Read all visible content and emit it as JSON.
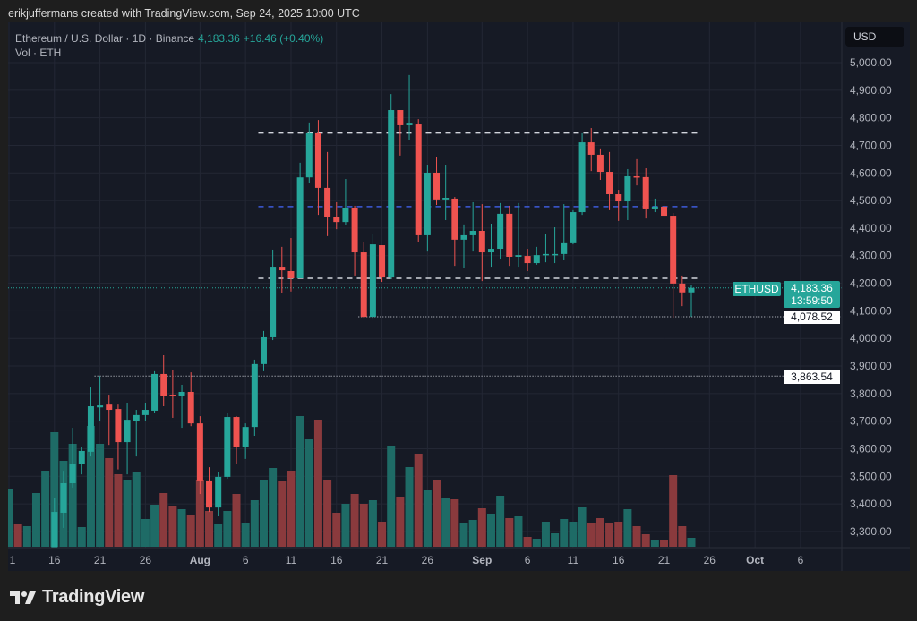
{
  "credit": "erikjuffermans created with TradingView.com, Sep 24, 2025 10:00 UTC",
  "legend": {
    "symbol": "Ethereum / U.S. Dollar · 1D · Binance",
    "price": "4,183.36",
    "change": "+16.46 (+0.40%)",
    "volume_label": "Vol · ETH"
  },
  "currency_button": "USD",
  "tags": {
    "symbol": "ETHUSD",
    "last_price": "4,183.36",
    "countdown": "13:59:50",
    "level_low": "4,078.52",
    "level_support": "3,863.54"
  },
  "brand": "TradingView",
  "colors": {
    "up": "#26a69a",
    "down": "#ef5350",
    "up_volume": "#1e6b66",
    "down_volume": "#8a3a3d",
    "mid_line": "#3d5bd9",
    "background": "#161a25"
  },
  "chart_data": {
    "type": "candlestick",
    "title": "Ethereum / U.S. Dollar · 1D · Binance",
    "ylim": [
      3250,
      5050
    ],
    "y_ticks": [
      "5,000.00",
      "4,900.00",
      "4,800.00",
      "4,700.00",
      "4,600.00",
      "4,500.00",
      "4,400.00",
      "4,300.00",
      "4,200.00",
      "4,100.00",
      "4,000.00",
      "3,900.00",
      "3,800.00",
      "3,700.00",
      "3,600.00",
      "3,500.00",
      "3,400.00",
      "3,300.00"
    ],
    "x_ticks": [
      {
        "date": "2025-07-11",
        "label": "1"
      },
      {
        "date": "2025-07-16",
        "label": "16"
      },
      {
        "date": "2025-07-21",
        "label": "21"
      },
      {
        "date": "2025-07-26",
        "label": "26"
      },
      {
        "date": "2025-08-01",
        "label": "Aug",
        "bold": true
      },
      {
        "date": "2025-08-06",
        "label": "6"
      },
      {
        "date": "2025-08-11",
        "label": "11"
      },
      {
        "date": "2025-08-16",
        "label": "16"
      },
      {
        "date": "2025-08-21",
        "label": "21"
      },
      {
        "date": "2025-08-26",
        "label": "26"
      },
      {
        "date": "2025-09-01",
        "label": "Sep",
        "bold": true
      },
      {
        "date": "2025-09-06",
        "label": "6"
      },
      {
        "date": "2025-09-11",
        "label": "11"
      },
      {
        "date": "2025-09-16",
        "label": "16"
      },
      {
        "date": "2025-09-21",
        "label": "21"
      },
      {
        "date": "2025-09-26",
        "label": "26"
      },
      {
        "date": "2025-10-01",
        "label": "Oct",
        "bold": true
      },
      {
        "date": "2025-10-06",
        "label": "6"
      }
    ],
    "x_start": "2025-07-11",
    "horizontal_lines": [
      {
        "price": 4745,
        "style": "dashed",
        "color": "#d1d4dc",
        "from": "2025-08-08",
        "to": "2025-09-24"
      },
      {
        "price": 4478,
        "style": "dashed",
        "color": "#3d5bd9",
        "from": "2025-08-08",
        "to": "2025-09-24"
      },
      {
        "price": 4218,
        "style": "dashed",
        "color": "#d1d4dc",
        "from": "2025-08-08",
        "to": "2025-09-24"
      },
      {
        "price": 4078.52,
        "style": "dotted",
        "color": "#d1d4dc",
        "from": "2025-08-19"
      },
      {
        "price": 3863.54,
        "style": "dotted",
        "color": "#d1d4dc",
        "from": "2025-07-21"
      },
      {
        "price": 4183.36,
        "style": "dotted",
        "color": "#26a69a",
        "from": "2025-07-11"
      }
    ],
    "candles": [
      {
        "d": "2025-07-11",
        "v": 65,
        "up": true
      },
      {
        "d": "2025-07-12",
        "v": 25,
        "up": false
      },
      {
        "d": "2025-07-13",
        "v": 23,
        "up": true
      },
      {
        "d": "2025-07-14",
        "v": 60,
        "up": true
      },
      {
        "d": "2025-07-15",
        "v": 85,
        "up": true
      },
      {
        "d": "2025-07-16",
        "o": 3230,
        "h": 3420,
        "l": 3200,
        "c": 3371,
        "v": 128
      },
      {
        "d": "2025-07-17",
        "o": 3368,
        "h": 3520,
        "l": 3313,
        "c": 3475,
        "v": 96
      },
      {
        "d": "2025-07-18",
        "o": 3475,
        "h": 3676,
        "l": 3459,
        "c": 3546,
        "v": 115
      },
      {
        "d": "2025-07-19",
        "o": 3546,
        "h": 3605,
        "l": 3507,
        "c": 3592,
        "v": 22
      },
      {
        "d": "2025-07-20",
        "o": 3589,
        "h": 3822,
        "l": 3572,
        "c": 3754,
        "v": 135
      },
      {
        "d": "2025-07-21",
        "o": 3750,
        "h": 3863.54,
        "l": 3702,
        "c": 3757,
        "v": 115
      },
      {
        "d": "2025-07-22",
        "o": 3760,
        "h": 3796,
        "l": 3614,
        "c": 3741,
        "v": 99
      },
      {
        "d": "2025-07-23",
        "o": 3744,
        "h": 3760,
        "l": 3525,
        "c": 3624,
        "v": 81
      },
      {
        "d": "2025-07-24",
        "o": 3624,
        "h": 3767,
        "l": 3507,
        "c": 3705,
        "v": 75
      },
      {
        "d": "2025-07-25",
        "o": 3702,
        "h": 3741,
        "l": 3572,
        "c": 3722,
        "v": 84
      },
      {
        "d": "2025-07-26",
        "o": 3722,
        "h": 3767,
        "l": 3702,
        "c": 3741,
        "v": 31
      },
      {
        "d": "2025-07-27",
        "o": 3738,
        "h": 3881,
        "l": 3731,
        "c": 3871,
        "v": 47
      },
      {
        "d": "2025-07-28",
        "o": 3871,
        "h": 3939,
        "l": 3754,
        "c": 3793,
        "v": 60
      },
      {
        "d": "2025-07-29",
        "o": 3796,
        "h": 3887,
        "l": 3712,
        "c": 3793,
        "v": 45
      },
      {
        "d": "2025-07-30",
        "o": 3793,
        "h": 3832,
        "l": 3676,
        "c": 3806,
        "v": 42
      },
      {
        "d": "2025-07-31",
        "o": 3806,
        "h": 3877,
        "l": 3682,
        "c": 3692,
        "v": 35
      },
      {
        "d": "2025-08-01",
        "o": 3692,
        "h": 3718,
        "l": 3436,
        "c": 3485,
        "v": 75
      },
      {
        "d": "2025-08-02",
        "o": 3485,
        "h": 3533,
        "l": 3371,
        "c": 3387,
        "v": 40
      },
      {
        "d": "2025-08-03",
        "o": 3387,
        "h": 3517,
        "l": 3355,
        "c": 3498,
        "v": 25
      },
      {
        "d": "2025-08-04",
        "o": 3498,
        "h": 3728,
        "l": 3491,
        "c": 3715,
        "v": 40
      },
      {
        "d": "2025-08-05",
        "o": 3715,
        "h": 3718,
        "l": 3546,
        "c": 3608,
        "v": 59
      },
      {
        "d": "2025-08-06",
        "o": 3608,
        "h": 3692,
        "l": 3563,
        "c": 3679,
        "v": 26
      },
      {
        "d": "2025-08-07",
        "o": 3679,
        "h": 3923,
        "l": 3647,
        "c": 3907,
        "v": 52
      },
      {
        "d": "2025-08-08",
        "o": 3907,
        "h": 4027,
        "l": 3881,
        "c": 4004,
        "v": 75
      },
      {
        "d": "2025-08-09",
        "o": 4004,
        "h": 4322,
        "l": 3994,
        "c": 4260,
        "v": 88
      },
      {
        "d": "2025-08-10",
        "o": 4260,
        "h": 4332,
        "l": 4163,
        "c": 4247,
        "v": 74
      },
      {
        "d": "2025-08-11",
        "o": 4244,
        "h": 4364,
        "l": 4170,
        "c": 4218,
        "v": 85
      },
      {
        "d": "2025-08-12",
        "o": 4218,
        "h": 4637,
        "l": 4218,
        "c": 4584,
        "v": 146
      },
      {
        "d": "2025-08-13",
        "o": 4584,
        "h": 4783,
        "l": 4562,
        "c": 4744,
        "v": 120
      },
      {
        "d": "2025-08-14",
        "o": 4744,
        "h": 4792,
        "l": 4448,
        "c": 4546,
        "v": 142
      },
      {
        "d": "2025-08-15",
        "o": 4546,
        "h": 4676,
        "l": 4371,
        "c": 4439,
        "v": 75
      },
      {
        "d": "2025-08-16",
        "o": 4439,
        "h": 4494,
        "l": 4396,
        "c": 4422,
        "v": 38
      },
      {
        "d": "2025-08-17",
        "o": 4422,
        "h": 4578,
        "l": 4410,
        "c": 4474,
        "v": 48
      },
      {
        "d": "2025-08-18",
        "o": 4474,
        "h": 4481,
        "l": 4228,
        "c": 4312,
        "v": 59
      },
      {
        "d": "2025-08-19",
        "o": 4312,
        "h": 4351,
        "l": 4075,
        "c": 4078,
        "v": 48
      },
      {
        "d": "2025-08-20",
        "o": 4078,
        "h": 4377,
        "l": 4068,
        "c": 4341,
        "v": 52
      },
      {
        "d": "2025-08-21",
        "o": 4338,
        "h": 4338,
        "l": 4205,
        "c": 4221,
        "v": 28
      },
      {
        "d": "2025-08-22",
        "o": 4221,
        "h": 4886,
        "l": 4215,
        "c": 4828,
        "v": 113
      },
      {
        "d": "2025-08-23",
        "o": 4828,
        "h": 4828,
        "l": 4663,
        "c": 4773,
        "v": 56
      },
      {
        "d": "2025-08-24",
        "o": 4773,
        "h": 4955,
        "l": 4718,
        "c": 4779,
        "v": 89
      },
      {
        "d": "2025-08-25",
        "o": 4776,
        "h": 4795,
        "l": 4351,
        "c": 4374,
        "v": 104
      },
      {
        "d": "2025-08-26",
        "o": 4374,
        "h": 4630,
        "l": 4315,
        "c": 4601,
        "v": 63
      },
      {
        "d": "2025-08-27",
        "o": 4601,
        "h": 4659,
        "l": 4484,
        "c": 4504,
        "v": 75
      },
      {
        "d": "2025-08-28",
        "o": 4504,
        "h": 4630,
        "l": 4429,
        "c": 4510,
        "v": 55
      },
      {
        "d": "2025-08-29",
        "o": 4507,
        "h": 4513,
        "l": 4263,
        "c": 4358,
        "v": 53
      },
      {
        "d": "2025-08-30",
        "o": 4358,
        "h": 4413,
        "l": 4254,
        "c": 4374,
        "v": 27
      },
      {
        "d": "2025-08-31",
        "o": 4374,
        "h": 4494,
        "l": 4315,
        "c": 4390,
        "v": 30
      },
      {
        "d": "2025-09-01",
        "o": 4390,
        "h": 4487,
        "l": 4208,
        "c": 4312,
        "v": 43
      },
      {
        "d": "2025-09-02",
        "o": 4312,
        "h": 4416,
        "l": 4260,
        "c": 4325,
        "v": 37
      },
      {
        "d": "2025-09-03",
        "o": 4325,
        "h": 4491,
        "l": 4286,
        "c": 4452,
        "v": 57
      },
      {
        "d": "2025-09-04",
        "o": 4452,
        "h": 4481,
        "l": 4263,
        "c": 4296,
        "v": 32
      },
      {
        "d": "2025-09-05",
        "o": 4296,
        "h": 4491,
        "l": 4260,
        "c": 4302,
        "v": 34
      },
      {
        "d": "2025-09-06",
        "o": 4299,
        "h": 4325,
        "l": 4244,
        "c": 4273,
        "v": 11
      },
      {
        "d": "2025-09-07",
        "o": 4273,
        "h": 4332,
        "l": 4267,
        "c": 4302,
        "v": 9
      },
      {
        "d": "2025-09-08",
        "o": 4302,
        "h": 4377,
        "l": 4276,
        "c": 4306,
        "v": 28
      },
      {
        "d": "2025-09-09",
        "o": 4302,
        "h": 4403,
        "l": 4273,
        "c": 4306,
        "v": 15
      },
      {
        "d": "2025-09-10",
        "o": 4306,
        "h": 4487,
        "l": 4283,
        "c": 4345,
        "v": 31
      },
      {
        "d": "2025-09-11",
        "o": 4345,
        "h": 4465,
        "l": 4341,
        "c": 4458,
        "v": 28
      },
      {
        "d": "2025-09-12",
        "o": 4458,
        "h": 4744,
        "l": 4448,
        "c": 4711,
        "v": 44
      },
      {
        "d": "2025-09-13",
        "o": 4711,
        "h": 4763,
        "l": 4607,
        "c": 4666,
        "v": 27
      },
      {
        "d": "2025-09-14",
        "o": 4666,
        "h": 4689,
        "l": 4575,
        "c": 4604,
        "v": 32
      },
      {
        "d": "2025-09-15",
        "o": 4604,
        "h": 4676,
        "l": 4465,
        "c": 4523,
        "v": 26
      },
      {
        "d": "2025-09-16",
        "o": 4523,
        "h": 4539,
        "l": 4426,
        "c": 4497,
        "v": 28
      },
      {
        "d": "2025-09-17",
        "o": 4497,
        "h": 4614,
        "l": 4429,
        "c": 4588,
        "v": 42
      },
      {
        "d": "2025-09-18",
        "o": 4588,
        "h": 4650,
        "l": 4555,
        "c": 4585,
        "v": 23
      },
      {
        "d": "2025-09-19",
        "o": 4585,
        "h": 4617,
        "l": 4435,
        "c": 4468,
        "v": 14
      },
      {
        "d": "2025-09-20",
        "o": 4468,
        "h": 4507,
        "l": 4458,
        "c": 4478,
        "v": 7
      },
      {
        "d": "2025-09-21",
        "o": 4478,
        "h": 4497,
        "l": 4442,
        "c": 4445,
        "v": 8
      },
      {
        "d": "2025-09-22",
        "o": 4445,
        "h": 4455,
        "l": 4075,
        "c": 4199,
        "v": 80
      },
      {
        "d": "2025-09-23",
        "o": 4199,
        "h": 4228,
        "l": 4117,
        "c": 4166.9,
        "v": 23
      },
      {
        "d": "2025-09-24",
        "o": 4166.9,
        "h": 4195,
        "l": 4078.52,
        "c": 4183.36,
        "v": 10
      }
    ]
  }
}
